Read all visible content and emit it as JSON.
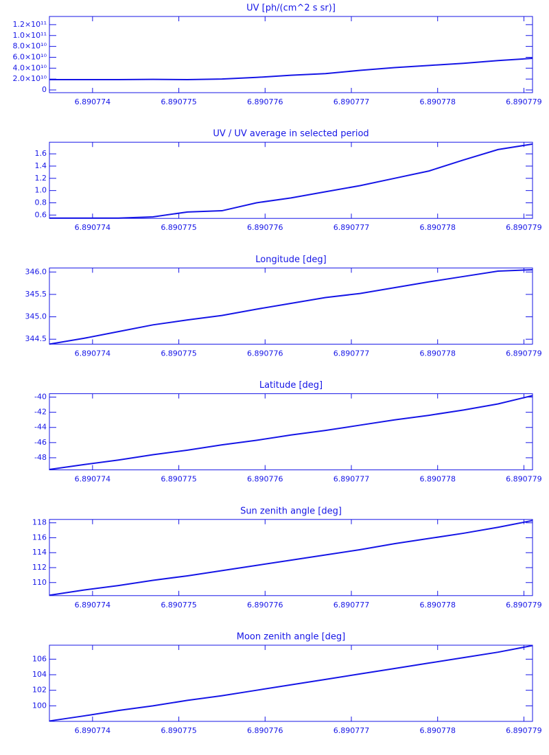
{
  "chart_data": [
    {
      "type": "line",
      "title": "UV [ph/(cm^2 s sr)]",
      "color": "#1414e6",
      "x": [
        6.8907735,
        6.8907739,
        6.8907743,
        6.8907747,
        6.8907751,
        6.8907755,
        6.8907759,
        6.8907763,
        6.8907767,
        6.8907771,
        6.8907775,
        6.8907779,
        6.8907783,
        6.8907787,
        6.8907791
      ],
      "values": [
        19000000000,
        19000000000,
        19000000000,
        19500000000,
        19000000000,
        20000000000,
        23000000000,
        27000000000,
        30000000000,
        36000000000,
        41000000000,
        45000000000,
        49000000000,
        54000000000,
        58000000000
      ],
      "xlim": [
        6.8907735,
        6.8907791
      ],
      "xticks": [
        6.890774,
        6.890775,
        6.890776,
        6.890777,
        6.890778,
        6.890779
      ],
      "ylim": [
        -5000000000,
        135000000000
      ],
      "yticks": [
        0,
        {
          "value": 20000000000,
          "label": "2.0×10¹⁰"
        },
        {
          "value": 40000000000,
          "label": "4.0×10¹⁰"
        },
        {
          "value": 60000000000,
          "label": "6.0×10¹⁰"
        },
        {
          "value": 80000000000,
          "label": "8.0×10¹⁰"
        },
        {
          "value": 100000000000,
          "label": "1.0×10¹¹"
        },
        {
          "value": 120000000000,
          "label": "1.2×10¹¹"
        }
      ]
    },
    {
      "type": "line",
      "title": "UV / UV average in selected period",
      "color": "#1414e6",
      "x": [
        6.8907735,
        6.8907739,
        6.8907743,
        6.8907747,
        6.8907751,
        6.8907755,
        6.8907759,
        6.8907763,
        6.8907767,
        6.8907771,
        6.8907775,
        6.8907779,
        6.8907783,
        6.8907787,
        6.8907791
      ],
      "values": [
        0.55,
        0.55,
        0.55,
        0.57,
        0.65,
        0.67,
        0.8,
        0.88,
        0.98,
        1.08,
        1.2,
        1.32,
        1.5,
        1.67,
        1.76
      ],
      "xlim": [
        6.8907735,
        6.8907791
      ],
      "xticks": [
        6.890774,
        6.890775,
        6.890776,
        6.890777,
        6.890778,
        6.890779
      ],
      "ylim": [
        0.545,
        1.79
      ],
      "yticks": [
        0.6,
        0.8,
        {
          "value": 1,
          "label": "1.0"
        },
        1.2,
        1.4,
        1.6
      ]
    },
    {
      "type": "line",
      "title": "Longitude [deg]",
      "color": "#1414e6",
      "x": [
        6.8907735,
        6.8907739,
        6.8907743,
        6.8907747,
        6.8907751,
        6.8907755,
        6.8907759,
        6.8907763,
        6.8907767,
        6.8907771,
        6.8907775,
        6.8907779,
        6.8907783,
        6.8907787,
        6.8907791
      ],
      "values": [
        344.39,
        344.52,
        344.67,
        344.82,
        344.93,
        345.03,
        345.17,
        345.3,
        345.43,
        345.52,
        345.65,
        345.78,
        345.9,
        346.02,
        346.05
      ],
      "xlim": [
        6.8907735,
        6.8907791
      ],
      "xticks": [
        6.890774,
        6.890775,
        6.890776,
        6.890777,
        6.890778,
        6.890779
      ],
      "ylim": [
        344.39,
        346.09
      ],
      "yticks": [
        344.5,
        {
          "value": 345,
          "label": "345.0"
        },
        345.5,
        {
          "value": 346,
          "label": "346.0"
        }
      ]
    },
    {
      "type": "line",
      "title": "Latitude [deg]",
      "color": "#1414e6",
      "x": [
        6.8907735,
        6.8907739,
        6.8907743,
        6.8907747,
        6.8907751,
        6.8907755,
        6.8907759,
        6.8907763,
        6.8907767,
        6.8907771,
        6.8907775,
        6.8907779,
        6.8907783,
        6.8907787,
        6.8907791
      ],
      "values": [
        -49.55,
        -48.9,
        -48.3,
        -47.6,
        -47.0,
        -46.3,
        -45.7,
        -45.0,
        -44.4,
        -43.7,
        -43.0,
        -42.4,
        -41.7,
        -40.9,
        -39.8
      ],
      "xlim": [
        6.8907735,
        6.8907791
      ],
      "xticks": [
        6.890774,
        6.890775,
        6.890776,
        6.890777,
        6.890778,
        6.890779
      ],
      "ylim": [
        -49.6,
        -39.55
      ],
      "yticks": [
        -48,
        -46,
        -44,
        -42,
        -40
      ]
    },
    {
      "type": "line",
      "title": "Sun zenith angle [deg]",
      "color": "#1414e6",
      "x": [
        6.8907735,
        6.8907739,
        6.8907743,
        6.8907747,
        6.8907751,
        6.8907755,
        6.8907759,
        6.8907763,
        6.8907767,
        6.8907771,
        6.8907775,
        6.8907779,
        6.8907783,
        6.8907787,
        6.8907791
      ],
      "values": [
        108.3,
        109.0,
        109.6,
        110.3,
        110.9,
        111.6,
        112.3,
        113.0,
        113.7,
        114.4,
        115.2,
        115.9,
        116.6,
        117.4,
        118.3
      ],
      "xlim": [
        6.8907735,
        6.8907791
      ],
      "xticks": [
        6.890774,
        6.890775,
        6.890776,
        6.890777,
        6.890778,
        6.890779
      ],
      "ylim": [
        108.25,
        118.45
      ],
      "yticks": [
        110,
        112,
        114,
        116,
        118
      ]
    },
    {
      "type": "line",
      "title": "Moon zenith angle [deg]",
      "color": "#1414e6",
      "x": [
        6.8907735,
        6.8907739,
        6.8907743,
        6.8907747,
        6.8907751,
        6.8907755,
        6.8907759,
        6.8907763,
        6.8907767,
        6.8907771,
        6.8907775,
        6.8907779,
        6.8907783,
        6.8907787,
        6.8907791
      ],
      "values": [
        98.05,
        98.7,
        99.4,
        100.0,
        100.7,
        101.3,
        102.0,
        102.7,
        103.4,
        104.1,
        104.8,
        105.5,
        106.2,
        106.9,
        107.75
      ],
      "xlim": [
        6.8907735,
        6.8907791
      ],
      "xticks": [
        6.890774,
        6.890775,
        6.890776,
        6.890777,
        6.890778,
        6.890779
      ],
      "ylim": [
        98.0,
        107.8
      ],
      "yticks": [
        100,
        102,
        104,
        106
      ]
    }
  ]
}
